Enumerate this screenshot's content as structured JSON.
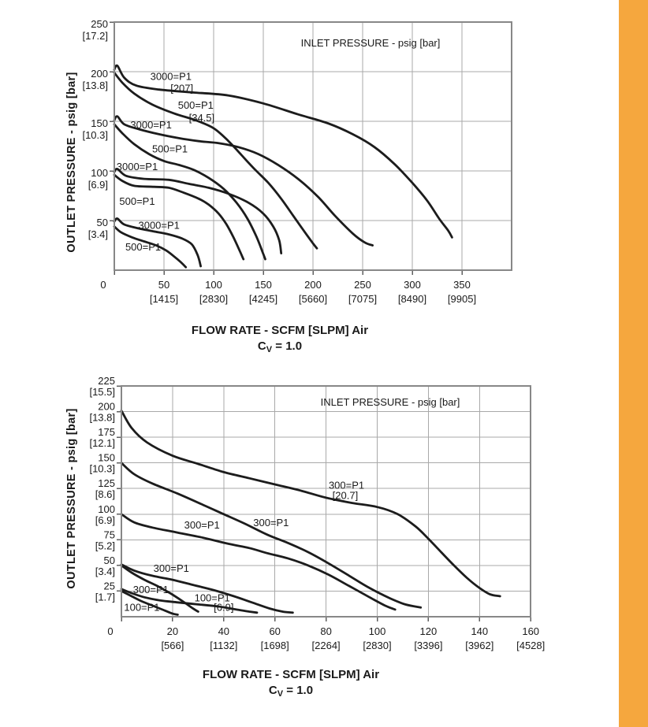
{
  "page": {
    "background_color": "#ffffff",
    "accent_bar_color": "#F5A73E",
    "curve_color": "#1c1c1c",
    "grid_color": "#a9a9a9"
  },
  "chart_data": [
    {
      "type": "line",
      "position": "top",
      "legend": "INLET PRESSURE - psig [bar]",
      "ylabel": "OUTLET PRESSURE - psig [bar]",
      "xlabel": "FLOW RATE - SCFM [SLPM] Air",
      "cv": {
        "prefix": "C",
        "sub": "V",
        "suffix": " = 1.0"
      },
      "xlim": [
        0,
        400
      ],
      "ylim": [
        0,
        250
      ],
      "grid_step": {
        "x": 50,
        "y": 50
      },
      "x_ticks": [
        {
          "v": 0,
          "t": "0"
        },
        {
          "v": 50,
          "t": "50",
          "sub": "[1415]"
        },
        {
          "v": 100,
          "t": "100",
          "sub": "[2830]"
        },
        {
          "v": 150,
          "t": "150",
          "sub": "[4245]"
        },
        {
          "v": 200,
          "t": "200",
          "sub": "[5660]"
        },
        {
          "v": 250,
          "t": "250",
          "sub": "[7075]"
        },
        {
          "v": 300,
          "t": "300",
          "sub": "[8490]"
        },
        {
          "v": 350,
          "t": "350",
          "sub": "[9905]"
        }
      ],
      "y_ticks": [
        {
          "v": 250,
          "t": "250",
          "sub": "[17.2]"
        },
        {
          "v": 200,
          "t": "200",
          "sub": "[13.8]"
        },
        {
          "v": 150,
          "t": "150",
          "sub": "[10.3]"
        },
        {
          "v": 100,
          "t": "100",
          "sub": "[6.9]"
        },
        {
          "v": 50,
          "t": "50",
          "sub": "[3.4]"
        }
      ],
      "series": [
        {
          "set": 200,
          "inlet": 3000,
          "points": [
            [
              0,
              202
            ],
            [
              3,
              206
            ],
            [
              10,
              194
            ],
            [
              22,
              186
            ],
            [
              45,
              182
            ],
            [
              80,
              179
            ],
            [
              115,
              176
            ],
            [
              150,
              168
            ],
            [
              185,
              157
            ],
            [
              215,
              148
            ],
            [
              240,
              137
            ],
            [
              262,
              124
            ],
            [
              282,
              107
            ],
            [
              300,
              88
            ],
            [
              315,
              70
            ],
            [
              327,
              52
            ],
            [
              336,
              40
            ],
            [
              340,
              33
            ]
          ]
        },
        {
          "set": 200,
          "inlet": 500,
          "points": [
            [
              0,
              199
            ],
            [
              8,
              189
            ],
            [
              20,
              178
            ],
            [
              38,
              167
            ],
            [
              60,
              158
            ],
            [
              82,
              151
            ],
            [
              100,
              143
            ],
            [
              115,
              130
            ],
            [
              128,
              116
            ],
            [
              142,
              101
            ],
            [
              155,
              88
            ],
            [
              168,
              72
            ],
            [
              180,
              55
            ],
            [
              192,
              38
            ],
            [
              200,
              27
            ],
            [
              204,
              22
            ]
          ]
        },
        {
          "set": 150,
          "inlet": 3000,
          "points": [
            [
              0,
              151
            ],
            [
              3,
              155
            ],
            [
              10,
              147
            ],
            [
              25,
              142
            ],
            [
              45,
              137
            ],
            [
              65,
              133
            ],
            [
              85,
              130
            ],
            [
              105,
              128
            ],
            [
              125,
              124
            ],
            [
              145,
              117
            ],
            [
              165,
              106
            ],
            [
              185,
              92
            ],
            [
              205,
              74
            ],
            [
              222,
              55
            ],
            [
              240,
              37
            ],
            [
              252,
              28
            ],
            [
              260,
              25
            ]
          ]
        },
        {
          "set": 150,
          "inlet": 500,
          "points": [
            [
              0,
              147
            ],
            [
              8,
              138
            ],
            [
              20,
              127
            ],
            [
              35,
              117
            ],
            [
              50,
              110
            ],
            [
              65,
              106
            ],
            [
              80,
              101
            ],
            [
              95,
              93
            ],
            [
              110,
              82
            ],
            [
              123,
              68
            ],
            [
              134,
              52
            ],
            [
              143,
              34
            ],
            [
              149,
              19
            ],
            [
              152,
              11
            ]
          ]
        },
        {
          "set": 100,
          "inlet": 3000,
          "points": [
            [
              0,
              99
            ],
            [
              3,
              102
            ],
            [
              12,
              95
            ],
            [
              30,
              92
            ],
            [
              55,
              91
            ],
            [
              75,
              87
            ],
            [
              95,
              83
            ],
            [
              115,
              77
            ],
            [
              135,
              68
            ],
            [
              150,
              57
            ],
            [
              160,
              44
            ],
            [
              166,
              30
            ],
            [
              168,
              17
            ]
          ]
        },
        {
          "set": 100,
          "inlet": 500,
          "points": [
            [
              0,
              96
            ],
            [
              8,
              90
            ],
            [
              20,
              85
            ],
            [
              40,
              84
            ],
            [
              55,
              83
            ],
            [
              70,
              78
            ],
            [
              85,
              72
            ],
            [
              95,
              66
            ],
            [
              105,
              57
            ],
            [
              113,
              46
            ],
            [
              120,
              33
            ],
            [
              126,
              20
            ],
            [
              130,
              11
            ]
          ]
        },
        {
          "set": 50,
          "inlet": 3000,
          "points": [
            [
              0,
              49
            ],
            [
              3,
              52
            ],
            [
              10,
              46
            ],
            [
              25,
              42
            ],
            [
              40,
              39
            ],
            [
              55,
              36
            ],
            [
              68,
              32
            ],
            [
              78,
              26
            ],
            [
              84,
              15
            ],
            [
              87,
              4
            ]
          ]
        },
        {
          "set": 50,
          "inlet": 500,
          "points": [
            [
              0,
              44
            ],
            [
              7,
              38
            ],
            [
              18,
              33
            ],
            [
              30,
              29
            ],
            [
              42,
              25
            ],
            [
              52,
              20
            ],
            [
              60,
              14
            ],
            [
              67,
              8
            ],
            [
              72,
              3
            ]
          ]
        }
      ],
      "curve_labels": [
        {
          "text": "3000=P1",
          "x": 57,
          "y": 195
        },
        {
          "text": "[207]",
          "x": 68,
          "y": 183
        },
        {
          "text": "500=P1",
          "x": 82,
          "y": 166
        },
        {
          "text": "[34.5]",
          "x": 88,
          "y": 153
        },
        {
          "text": "3000=P1",
          "x": 37,
          "y": 146
        },
        {
          "text": "500=P1",
          "x": 56,
          "y": 122
        },
        {
          "text": "3000=P1",
          "x": 23,
          "y": 104
        },
        {
          "text": "500=P1",
          "x": 23,
          "y": 69
        },
        {
          "text": "3000=P1",
          "x": 45,
          "y": 45
        },
        {
          "text": "500=P1",
          "x": 29,
          "y": 23
        }
      ]
    },
    {
      "type": "line",
      "position": "bottom",
      "legend": "INLET PRESSURE - psig [bar]",
      "ylabel": "OUTLET PRESSURE - psig [bar]",
      "xlabel": "FLOW RATE - SCFM [SLPM] Air",
      "cv": {
        "prefix": "C",
        "sub": "V",
        "suffix": " = 1.0"
      },
      "xlim": [
        0,
        160
      ],
      "ylim": [
        0,
        225
      ],
      "grid_step": {
        "x": 20,
        "y": 25
      },
      "x_ticks": [
        {
          "v": 0,
          "t": "0"
        },
        {
          "v": 20,
          "t": "20",
          "sub": "[566]"
        },
        {
          "v": 40,
          "t": "40",
          "sub": "[1132]"
        },
        {
          "v": 60,
          "t": "60",
          "sub": "[1698]"
        },
        {
          "v": 80,
          "t": "80",
          "sub": "[2264]"
        },
        {
          "v": 100,
          "t": "100",
          "sub": "[2830]"
        },
        {
          "v": 120,
          "t": "120",
          "sub": "[3396]"
        },
        {
          "v": 140,
          "t": "140",
          "sub": "[3962]"
        },
        {
          "v": 160,
          "t": "160",
          "sub": "[4528]"
        }
      ],
      "y_ticks": [
        {
          "v": 225,
          "t": "225",
          "sub": "[15.5]"
        },
        {
          "v": 200,
          "t": "200",
          "sub": "[13.8]"
        },
        {
          "v": 175,
          "t": "175",
          "sub": "[12.1]"
        },
        {
          "v": 150,
          "t": "150",
          "sub": "[10.3]"
        },
        {
          "v": 125,
          "t": "125",
          "sub": "[8.6]"
        },
        {
          "v": 100,
          "t": "100",
          "sub": "[6.9]"
        },
        {
          "v": 75,
          "t": "75",
          "sub": "[5.2]"
        },
        {
          "v": 50,
          "t": "50",
          "sub": "[3.4]"
        },
        {
          "v": 25,
          "t": "25",
          "sub": "[1.7]"
        }
      ],
      "series": [
        {
          "set": 200,
          "inlet": 300,
          "points": [
            [
              0,
              201
            ],
            [
              4,
              184
            ],
            [
              10,
              170
            ],
            [
              20,
              157
            ],
            [
              30,
              149
            ],
            [
              40,
              141
            ],
            [
              50,
              135
            ],
            [
              60,
              129
            ],
            [
              70,
              123
            ],
            [
              80,
              116
            ],
            [
              90,
              111
            ],
            [
              100,
              107
            ],
            [
              108,
              100
            ],
            [
              115,
              88
            ],
            [
              120,
              76
            ],
            [
              125,
              63
            ],
            [
              130,
              50
            ],
            [
              135,
              38
            ],
            [
              140,
              28
            ],
            [
              144,
              22
            ],
            [
              148,
              20
            ]
          ]
        },
        {
          "set": 150,
          "inlet": 300,
          "points": [
            [
              0,
              150
            ],
            [
              5,
              139
            ],
            [
              12,
              130
            ],
            [
              22,
              120
            ],
            [
              32,
              109
            ],
            [
              40,
              100
            ],
            [
              48,
              91
            ],
            [
              57,
              80
            ],
            [
              65,
              72
            ],
            [
              73,
              63
            ],
            [
              81,
              52
            ],
            [
              89,
              40
            ],
            [
              97,
              28
            ],
            [
              105,
              18
            ],
            [
              111,
              12
            ],
            [
              117,
              9
            ]
          ]
        },
        {
          "set": 100,
          "inlet": 300,
          "points": [
            [
              0,
              100
            ],
            [
              5,
              92
            ],
            [
              12,
              87
            ],
            [
              22,
              82
            ],
            [
              32,
              77
            ],
            [
              42,
              71
            ],
            [
              50,
              67
            ],
            [
              57,
              62
            ],
            [
              65,
              57
            ],
            [
              73,
              50
            ],
            [
              81,
              41
            ],
            [
              89,
              30
            ],
            [
              97,
              19
            ],
            [
              103,
              11
            ],
            [
              107,
              7
            ]
          ]
        },
        {
          "set": 50,
          "inlet": 300,
          "points": [
            [
              0,
              51
            ],
            [
              5,
              45
            ],
            [
              12,
              40
            ],
            [
              20,
              36
            ],
            [
              28,
              31
            ],
            [
              36,
              26
            ],
            [
              44,
              20
            ],
            [
              51,
              14
            ],
            [
              58,
              8
            ],
            [
              63,
              5
            ],
            [
              67,
              4
            ]
          ]
        },
        {
          "set": 50,
          "inlet": 100,
          "points": [
            [
              0,
              50
            ],
            [
              4,
              43
            ],
            [
              9,
              36
            ],
            [
              14,
              30
            ],
            [
              19,
              23
            ],
            [
              24,
              15
            ],
            [
              28,
              8
            ],
            [
              30,
              5
            ]
          ]
        },
        {
          "set": 25,
          "inlet": 300,
          "points": [
            [
              0,
              27
            ],
            [
              4,
              23
            ],
            [
              9,
              19
            ],
            [
              15,
              16
            ],
            [
              22,
              14
            ],
            [
              30,
              12
            ],
            [
              38,
              10
            ],
            [
              45,
              7
            ],
            [
              50,
              5
            ],
            [
              53,
              4
            ]
          ]
        },
        {
          "set": 25,
          "inlet": 100,
          "points": [
            [
              0,
              25
            ],
            [
              4,
              20
            ],
            [
              8,
              15
            ],
            [
              13,
              10
            ],
            [
              17,
              6
            ],
            [
              20,
              3
            ],
            [
              22,
              2
            ]
          ]
        }
      ],
      "curve_labels": [
        {
          "text": "300=P1",
          "x": 88,
          "y": 128
        },
        {
          "text": "[20.7]",
          "x": 87.5,
          "y": 118
        },
        {
          "text": "300=P1",
          "x": 58.5,
          "y": 91.5
        },
        {
          "text": "300=P1",
          "x": 31.5,
          "y": 89
        },
        {
          "text": "300=P1",
          "x": 19.5,
          "y": 47
        },
        {
          "text": "300=P1",
          "x": 11.5,
          "y": 26
        },
        {
          "text": "100=P1",
          "x": 8,
          "y": 9
        },
        {
          "text": "100=P1",
          "x": 35.5,
          "y": 18
        },
        {
          "text": "[6.9]",
          "x": 40,
          "y": 9
        }
      ]
    }
  ]
}
